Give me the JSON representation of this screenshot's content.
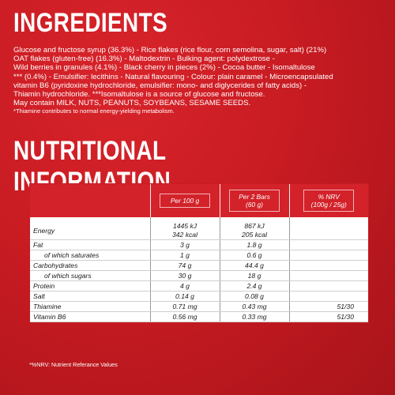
{
  "ingredients": {
    "title": "INGREDIENTS",
    "lines": [
      "Glucose and fructose syrup (36.3%) - Rice flakes (rice flour, corn semolina, sugar, salt) (21%)",
      "OAT flakes (gluten-free) (16.3%) - Maltodextrin - Bulking agent: polydextrose -",
      "Wild berries in granules (4.1%) - Black cherry in pieces (2%) - Cocoa butter - Isomaltulose",
      "*** (0.4%) - Emulsifier: lecithins - Natural flavouring - Colour: plain caramel - Microencapsulated",
      "vitamin B6 (pyridoxine hydrochloride, emulsifier: mono- and diglycerides of fatty acids) -",
      "Thiamin hydrochloride. ***Isomaltulose is a source of glucose and fructose.",
      "May contain MILK, NUTS, PEANUTS, SOYBEANS, SESAME SEEDS."
    ],
    "note": "*Thiamine contributes to normal energy-yielding metabolism."
  },
  "nutrition": {
    "title": "NUTRITIONAL INFORMATION",
    "headers": {
      "per100": "Per 100 g",
      "per2_line1": "Per 2 Bars",
      "per2_line2": "(60 g)",
      "nrv_line1": "% NRV",
      "nrv_line2": "(100g / 25g)"
    },
    "energy": {
      "label": "Energy",
      "per100_kj": "1445 kJ",
      "per100_kcal": "342 kcal",
      "per2_kj": "867 kJ",
      "per2_kcal": "205 kcal"
    },
    "rows": [
      {
        "label": "Fat",
        "per100": "3 g",
        "per2": "1.8 g",
        "nrv": ""
      },
      {
        "label": "of which saturates",
        "per100": "1 g",
        "per2": "0.6 g",
        "nrv": ""
      },
      {
        "label": "Carbohydrates",
        "per100": "74 g",
        "per2": "44.4 g",
        "nrv": ""
      },
      {
        "label": "of which sugars",
        "per100": "30 g",
        "per2": "18 g",
        "nrv": ""
      },
      {
        "label": "Protein",
        "per100": "4 g",
        "per2": "2.4 g",
        "nrv": ""
      },
      {
        "label": "Salt",
        "per100": "0.14 g",
        "per2": "0.08 g",
        "nrv": ""
      },
      {
        "label": "Thiamine",
        "per100": "0.71 mg",
        "per2": "0.43 mg",
        "nrv": "51/30"
      },
      {
        "label": "Vitamin B6",
        "per100": "0.56 mg",
        "per2": "0.33 mg",
        "nrv": "51/30"
      }
    ],
    "footnote": "*%NRV: Nutrient Referance Values"
  }
}
